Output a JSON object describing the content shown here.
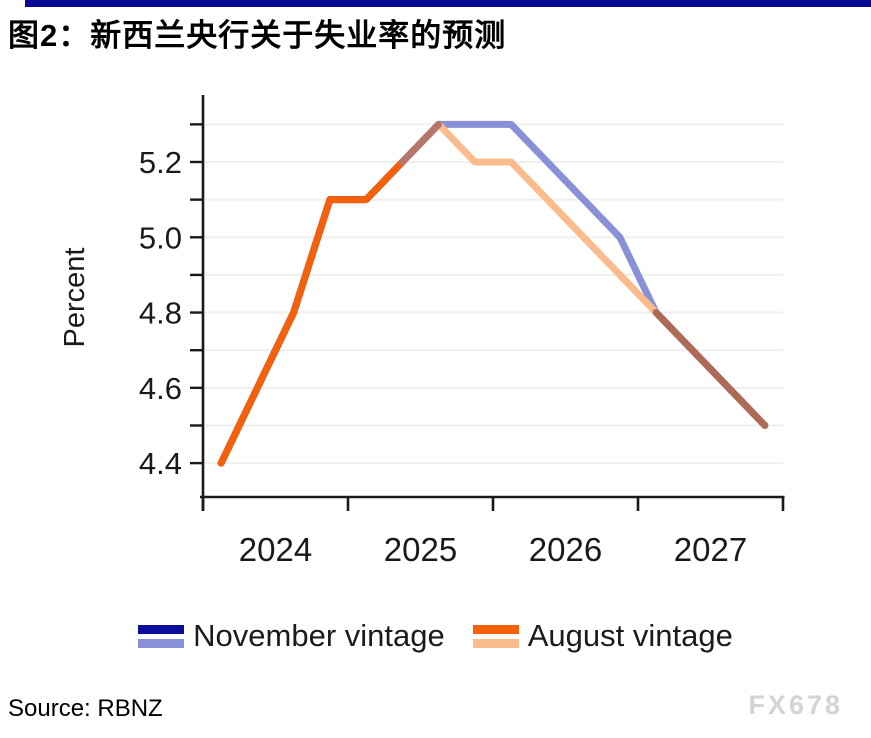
{
  "header": {
    "title": "图2：新西兰央行关于失业率的预测",
    "accent_color": "#0a0a96"
  },
  "chart_data": {
    "type": "line",
    "title": "图2：新西兰央行关于失业率的预测",
    "ylabel": "Percent",
    "quarters": [
      "2024Q1",
      "2024Q2",
      "2024Q3",
      "2024Q4",
      "2025Q1",
      "2025Q2",
      "2025Q3",
      "2025Q4",
      "2026Q1",
      "2026Q2",
      "2026Q3",
      "2026Q4",
      "2027Q1",
      "2027Q2",
      "2027Q3",
      "2027Q4"
    ],
    "series": [
      {
        "name": "November vintage",
        "history_color": "#0d0d9c",
        "forecast_color": "#8890d8",
        "history_through": "2025Q3",
        "values": [
          4.4,
          4.6,
          4.8,
          5.1,
          5.1,
          5.2,
          5.3,
          5.3,
          5.3,
          5.2,
          5.1,
          5.0,
          4.8,
          4.7,
          4.6,
          4.5
        ]
      },
      {
        "name": "August vintage",
        "history_color": "#f4610a",
        "forecast_color": "#fabb8d",
        "history_through": "2025Q2",
        "values": [
          4.4,
          4.6,
          4.8,
          5.1,
          5.1,
          5.2,
          5.3,
          5.2,
          5.2,
          5.1,
          5.0,
          4.9,
          4.8,
          4.7,
          4.6,
          4.5
        ]
      }
    ],
    "overlap_segments": [
      {
        "from": "2025Q2",
        "to": "2025Q3",
        "color": "#b5766b"
      },
      {
        "from": "2027Q1",
        "to": "2027Q4",
        "color": "#ad6a58"
      }
    ],
    "y_axis": {
      "label": "Percent",
      "range": [
        4.31,
        5.37
      ],
      "ticks": [
        4.4,
        4.5,
        4.6,
        4.7,
        4.8,
        4.9,
        5.0,
        5.1,
        5.2,
        5.3
      ],
      "labeled_ticks": [
        4.4,
        4.6,
        4.8,
        5.0,
        5.2
      ]
    },
    "x_axis": {
      "range": [
        2024.0,
        2028.0
      ],
      "boundary_ticks": [
        2024,
        2025,
        2026,
        2027,
        2028
      ],
      "year_labels": [
        "2024",
        "2025",
        "2026",
        "2027"
      ]
    },
    "grid": "horizontal",
    "legend_position": "bottom"
  },
  "footer": {
    "source": "Source: RBNZ",
    "watermark": "FX678"
  }
}
